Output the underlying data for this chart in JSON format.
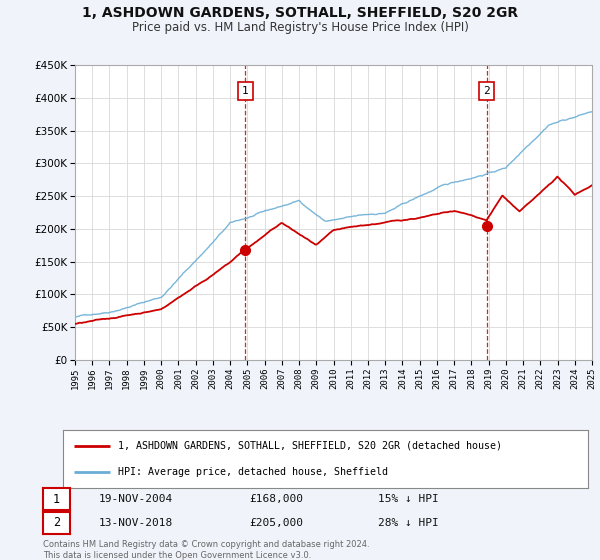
{
  "title": "1, ASHDOWN GARDENS, SOTHALL, SHEFFIELD, S20 2GR",
  "subtitle": "Price paid vs. HM Land Registry's House Price Index (HPI)",
  "background_color": "#f0f4fa",
  "plot_bg_color": "#ffffff",
  "legend_label_red": "1, ASHDOWN GARDENS, SOTHALL, SHEFFIELD, S20 2GR (detached house)",
  "legend_label_blue": "HPI: Average price, detached house, Sheffield",
  "sale1_label": "1",
  "sale1_date": "19-NOV-2004",
  "sale1_price": "£168,000",
  "sale1_hpi": "15% ↓ HPI",
  "sale1_year": 2004.88,
  "sale1_value": 168000,
  "sale2_label": "2",
  "sale2_date": "13-NOV-2018",
  "sale2_price": "£205,000",
  "sale2_hpi": "28% ↓ HPI",
  "sale2_year": 2018.88,
  "sale2_value": 205000,
  "footer_line1": "Contains HM Land Registry data © Crown copyright and database right 2024.",
  "footer_line2": "This data is licensed under the Open Government Licence v3.0.",
  "ylim": [
    0,
    450000
  ],
  "yticks": [
    0,
    50000,
    100000,
    150000,
    200000,
    250000,
    300000,
    350000,
    400000,
    450000
  ],
  "xlim_start": 1995,
  "xlim_end": 2025,
  "red_color": "#cc0000",
  "blue_color": "#6aaed6",
  "grid_color": "#d8d8d8",
  "spine_color": "#aaaaaa"
}
